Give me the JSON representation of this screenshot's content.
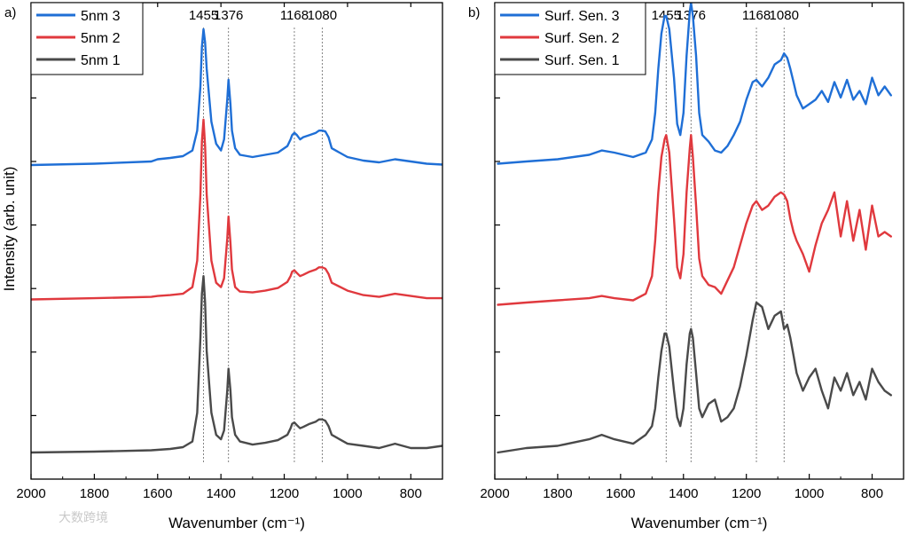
{
  "y_axis_title": "Intensity (arb. unit)",
  "x_axis_title": "Wavenumber (cm⁻¹)",
  "watermark": "大数跨境",
  "chart_data": [
    {
      "type": "line",
      "panel_label": "a)",
      "xlabel": "Wavenumber (cm⁻¹)",
      "ylabel": "Intensity (arb. unit)",
      "xlim": [
        2000,
        700
      ],
      "x_reversed": true,
      "xticks": [
        2000,
        1800,
        1600,
        1400,
        1200,
        1000,
        800
      ],
      "ylim": [
        0,
        10
      ],
      "y_ticks_labeled": false,
      "peak_lines": [
        1455,
        1376,
        1168,
        1080
      ],
      "legend_position": "top-left",
      "series": [
        {
          "name": "5nm 3",
          "color": "#1f6fd6",
          "offset": 6.5,
          "x": [
            2000,
            1800,
            1620,
            1600,
            1560,
            1520,
            1490,
            1475,
            1465,
            1460,
            1455,
            1450,
            1445,
            1430,
            1415,
            1400,
            1390,
            1380,
            1376,
            1370,
            1365,
            1355,
            1340,
            1300,
            1260,
            1220,
            1190,
            1180,
            1175,
            1168,
            1160,
            1150,
            1140,
            1120,
            1100,
            1090,
            1080,
            1070,
            1060,
            1050,
            1000,
            950,
            900,
            850,
            800,
            750,
            700
          ],
          "y": [
            0.02,
            0.05,
            0.1,
            0.15,
            0.18,
            0.22,
            0.35,
            0.8,
            1.8,
            2.7,
            3.1,
            2.8,
            2.2,
            1.0,
            0.5,
            0.35,
            0.6,
            1.5,
            1.95,
            1.4,
            0.8,
            0.4,
            0.25,
            0.2,
            0.25,
            0.3,
            0.45,
            0.6,
            0.7,
            0.75,
            0.7,
            0.6,
            0.65,
            0.7,
            0.75,
            0.8,
            0.8,
            0.78,
            0.65,
            0.4,
            0.2,
            0.12,
            0.08,
            0.15,
            0.1,
            0.05,
            0.03
          ]
        },
        {
          "name": "5nm 2",
          "color": "#e0393e",
          "offset": 3.45,
          "x": [
            2000,
            1800,
            1620,
            1600,
            1560,
            1520,
            1490,
            1475,
            1465,
            1460,
            1455,
            1450,
            1445,
            1430,
            1415,
            1400,
            1390,
            1380,
            1376,
            1370,
            1365,
            1355,
            1340,
            1300,
            1260,
            1220,
            1190,
            1180,
            1175,
            1168,
            1160,
            1150,
            1140,
            1120,
            1100,
            1090,
            1080,
            1070,
            1060,
            1050,
            1000,
            950,
            900,
            850,
            800,
            750,
            700
          ],
          "y": [
            0.02,
            0.05,
            0.08,
            0.1,
            0.12,
            0.15,
            0.3,
            0.9,
            2.4,
            3.6,
            4.1,
            3.5,
            2.4,
            0.9,
            0.4,
            0.3,
            0.5,
            1.4,
            1.9,
            1.3,
            0.7,
            0.3,
            0.2,
            0.18,
            0.22,
            0.28,
            0.42,
            0.55,
            0.65,
            0.68,
            0.62,
            0.55,
            0.58,
            0.65,
            0.7,
            0.75,
            0.75,
            0.72,
            0.6,
            0.4,
            0.22,
            0.12,
            0.08,
            0.15,
            0.1,
            0.05,
            0.05
          ]
        },
        {
          "name": "5nm 1",
          "color": "#4a4a4a",
          "offset": 0,
          "x": [
            2000,
            1800,
            1620,
            1600,
            1560,
            1520,
            1490,
            1475,
            1465,
            1460,
            1455,
            1450,
            1445,
            1430,
            1415,
            1400,
            1390,
            1380,
            1376,
            1370,
            1365,
            1355,
            1340,
            1300,
            1260,
            1220,
            1190,
            1180,
            1175,
            1168,
            1160,
            1150,
            1140,
            1120,
            1100,
            1090,
            1080,
            1070,
            1060,
            1050,
            1000,
            950,
            900,
            850,
            800,
            750,
            700
          ],
          "y": [
            0.0,
            0.02,
            0.05,
            0.06,
            0.08,
            0.12,
            0.25,
            0.9,
            2.6,
            3.6,
            4.0,
            3.4,
            2.3,
            0.9,
            0.4,
            0.3,
            0.5,
            1.4,
            1.9,
            1.4,
            0.8,
            0.4,
            0.25,
            0.18,
            0.22,
            0.28,
            0.4,
            0.55,
            0.65,
            0.68,
            0.62,
            0.55,
            0.58,
            0.65,
            0.7,
            0.75,
            0.75,
            0.72,
            0.6,
            0.4,
            0.2,
            0.15,
            0.1,
            0.2,
            0.1,
            0.1,
            0.15
          ]
        }
      ]
    },
    {
      "type": "line",
      "panel_label": "b)",
      "xlabel": "Wavenumber (cm⁻¹)",
      "ylabel": "",
      "xlim": [
        2000,
        700
      ],
      "x_reversed": true,
      "xticks": [
        2000,
        1800,
        1600,
        1400,
        1200,
        1000,
        800
      ],
      "ylim": [
        0,
        10
      ],
      "y_ticks_labeled": false,
      "peak_lines": [
        1455,
        1376,
        1168,
        1080
      ],
      "legend_position": "top-left",
      "series": [
        {
          "name": "Surf. Sen. 3",
          "color": "#1f6fd6",
          "offset": 6.5,
          "x": [
            1990,
            1900,
            1800,
            1700,
            1660,
            1620,
            1560,
            1520,
            1500,
            1490,
            1480,
            1470,
            1460,
            1455,
            1445,
            1430,
            1420,
            1410,
            1400,
            1390,
            1380,
            1376,
            1370,
            1360,
            1350,
            1340,
            1320,
            1300,
            1280,
            1260,
            1240,
            1220,
            1200,
            1180,
            1168,
            1150,
            1130,
            1110,
            1090,
            1080,
            1070,
            1060,
            1050,
            1040,
            1020,
            1000,
            980,
            960,
            940,
            920,
            900,
            880,
            860,
            840,
            820,
            800,
            780,
            760,
            740
          ],
          "y": [
            0.05,
            0.1,
            0.15,
            0.25,
            0.35,
            0.3,
            0.2,
            0.3,
            0.6,
            1.2,
            2.2,
            3.0,
            3.4,
            3.4,
            3.1,
            2.0,
            0.95,
            0.7,
            1.2,
            2.5,
            3.5,
            3.7,
            3.4,
            2.5,
            1.2,
            0.7,
            0.55,
            0.35,
            0.3,
            0.45,
            0.7,
            1.0,
            1.5,
            1.9,
            1.95,
            1.8,
            2.0,
            2.3,
            2.4,
            2.55,
            2.45,
            2.2,
            1.9,
            1.6,
            1.3,
            1.4,
            1.5,
            1.7,
            1.45,
            1.9,
            1.55,
            1.95,
            1.5,
            1.7,
            1.4,
            2.0,
            1.6,
            1.8,
            1.6
          ]
        },
        {
          "name": "Surf. Sen. 2",
          "color": "#e0393e",
          "offset": 3.3,
          "x": [
            1990,
            1900,
            1800,
            1700,
            1660,
            1620,
            1560,
            1520,
            1500,
            1490,
            1480,
            1470,
            1460,
            1455,
            1445,
            1430,
            1420,
            1410,
            1400,
            1390,
            1380,
            1376,
            1370,
            1360,
            1350,
            1340,
            1320,
            1300,
            1280,
            1260,
            1240,
            1220,
            1200,
            1180,
            1168,
            1150,
            1130,
            1110,
            1090,
            1080,
            1070,
            1060,
            1050,
            1040,
            1020,
            1000,
            980,
            960,
            940,
            920,
            900,
            880,
            860,
            840,
            820,
            800,
            780,
            760,
            740
          ],
          "y": [
            0.05,
            0.1,
            0.15,
            0.2,
            0.25,
            0.2,
            0.15,
            0.3,
            0.7,
            1.5,
            2.6,
            3.4,
            3.8,
            3.9,
            3.5,
            2.0,
            0.9,
            0.65,
            1.2,
            2.6,
            3.6,
            3.9,
            3.4,
            2.3,
            1.1,
            0.7,
            0.5,
            0.45,
            0.3,
            0.6,
            0.9,
            1.4,
            1.9,
            2.3,
            2.4,
            2.2,
            2.3,
            2.5,
            2.6,
            2.55,
            2.4,
            2.0,
            1.7,
            1.5,
            1.2,
            0.8,
            1.4,
            1.9,
            2.2,
            2.6,
            1.6,
            2.4,
            1.5,
            2.2,
            1.3,
            2.3,
            1.6,
            1.7,
            1.6
          ]
        },
        {
          "name": "Surf. Sen. 1",
          "color": "#4a4a4a",
          "offset": 0,
          "x": [
            1990,
            1900,
            1800,
            1700,
            1660,
            1620,
            1560,
            1520,
            1500,
            1490,
            1480,
            1470,
            1460,
            1455,
            1445,
            1430,
            1420,
            1410,
            1400,
            1390,
            1380,
            1376,
            1370,
            1360,
            1350,
            1340,
            1320,
            1300,
            1280,
            1260,
            1240,
            1220,
            1200,
            1180,
            1168,
            1150,
            1130,
            1110,
            1090,
            1080,
            1070,
            1060,
            1050,
            1040,
            1020,
            1000,
            980,
            960,
            940,
            920,
            900,
            880,
            860,
            840,
            820,
            800,
            780,
            760,
            740
          ],
          "y": [
            0.0,
            0.1,
            0.15,
            0.3,
            0.4,
            0.3,
            0.2,
            0.4,
            0.6,
            1.0,
            1.7,
            2.3,
            2.7,
            2.7,
            2.4,
            1.4,
            0.8,
            0.6,
            1.0,
            2.0,
            2.7,
            2.8,
            2.6,
            1.8,
            1.0,
            0.8,
            1.1,
            1.2,
            0.7,
            0.8,
            1.0,
            1.5,
            2.2,
            3.0,
            3.4,
            3.3,
            2.8,
            3.1,
            3.2,
            2.8,
            2.9,
            2.6,
            2.2,
            1.8,
            1.4,
            1.7,
            1.9,
            1.4,
            1.0,
            1.7,
            1.4,
            1.8,
            1.3,
            1.6,
            1.2,
            1.9,
            1.6,
            1.4,
            1.3
          ]
        }
      ]
    }
  ]
}
